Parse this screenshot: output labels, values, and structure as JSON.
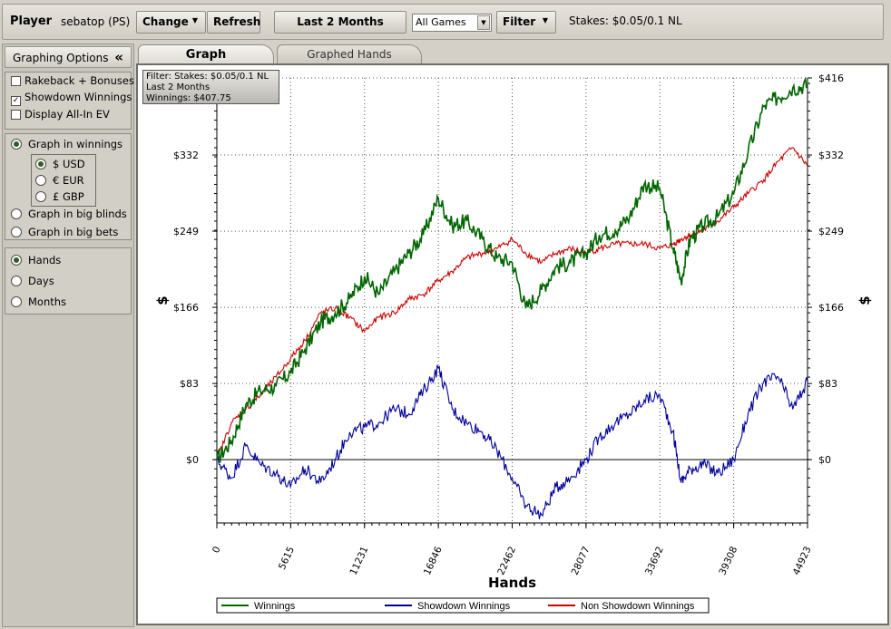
{
  "topbar": {
    "player_label": "Player",
    "player_name": "sebatop (PS)",
    "change_label": "Change",
    "refresh_label": "Refresh",
    "range_label": "Last  2 Months",
    "games_value": "All Games",
    "filter_label": "Filter",
    "stakes_text": "Stakes: $0.05/0.1 NL"
  },
  "sidebar": {
    "header": "Graphing Options",
    "collapse_glyph": "«",
    "checkboxes": [
      {
        "label": "Rakeback + Bonuses",
        "checked": false
      },
      {
        "label": "Showdown Winnings",
        "checked": true
      },
      {
        "label": "Display All-In EV",
        "checked": false
      }
    ],
    "graph_in_winnings": "Graph in winnings",
    "currencies": [
      {
        "label": "$ USD",
        "selected": true
      },
      {
        "label": "€ EUR",
        "selected": false
      },
      {
        "label": "£ GBP",
        "selected": false
      }
    ],
    "graph_in_big_blinds": "Graph in big blinds",
    "graph_in_big_bets": "Graph in big bets",
    "xaxis_options": [
      {
        "label": "Hands",
        "selected": true
      },
      {
        "label": "Days",
        "selected": false
      },
      {
        "label": "Months",
        "selected": false
      }
    ]
  },
  "tabs": [
    {
      "label": "Graph",
      "active": true
    },
    {
      "label": "Graphed Hands",
      "active": false
    }
  ],
  "info_box": {
    "line1": "Filter: Stakes: $0.05/0.1 NL",
    "line2": "Last  2 Months",
    "line3": "Winnings: $407.75"
  },
  "chart_data": {
    "type": "line",
    "xlabel": "Hands",
    "ylabel": "$",
    "xlim": [
      0,
      44923
    ],
    "ylim": [
      -69,
      416
    ],
    "x_ticks": [
      "0",
      "5615",
      "11231",
      "16846",
      "22462",
      "28077",
      "33692",
      "39308",
      "44923"
    ],
    "y_ticks": [
      {
        "value": 416,
        "label": "$416"
      },
      {
        "value": 332,
        "label": "$332"
      },
      {
        "value": 249,
        "label": "$249"
      },
      {
        "value": 166,
        "label": "$166"
      },
      {
        "value": 83,
        "label": "$83"
      },
      {
        "value": 0,
        "label": "$0"
      }
    ],
    "grid": true,
    "legend": "bottom",
    "series": [
      {
        "name": "Winnings",
        "color": "#006600",
        "x": [
          0,
          1100,
          2200,
          3300,
          4500,
          5600,
          6700,
          7900,
          9000,
          10100,
          11231,
          12300,
          13500,
          14600,
          15700,
          16846,
          17900,
          19000,
          20200,
          21300,
          22462,
          23500,
          24700,
          25800,
          26900,
          28077,
          29100,
          30300,
          31400,
          32500,
          33692,
          34700,
          35300,
          36000,
          37000,
          38100,
          39308,
          40400,
          41600,
          42700,
          43800,
          44923
        ],
        "y": [
          0,
          20,
          60,
          75,
          80,
          95,
          120,
          150,
          160,
          175,
          200,
          180,
          205,
          225,
          245,
          285,
          255,
          260,
          240,
          220,
          215,
          165,
          185,
          210,
          215,
          225,
          245,
          250,
          265,
          300,
          295,
          230,
          195,
          240,
          255,
          265,
          290,
          335,
          385,
          395,
          405,
          408
        ]
      },
      {
        "name": "Showdown Winnings",
        "color": "#000099",
        "x": [
          0,
          1100,
          2200,
          3300,
          4500,
          5600,
          6700,
          7900,
          9000,
          10100,
          11231,
          12300,
          13500,
          14600,
          15700,
          16846,
          17900,
          19000,
          20200,
          21300,
          22462,
          23500,
          24700,
          25800,
          26900,
          28077,
          29100,
          30300,
          31400,
          32500,
          33692,
          34700,
          35300,
          36000,
          37000,
          38100,
          39308,
          40400,
          41600,
          42700,
          43800,
          44923
        ],
        "y": [
          0,
          -20,
          15,
          -5,
          -15,
          -30,
          -10,
          -25,
          0,
          30,
          35,
          40,
          55,
          50,
          75,
          100,
          55,
          40,
          30,
          10,
          -20,
          -50,
          -60,
          -30,
          -20,
          0,
          25,
          40,
          50,
          65,
          70,
          30,
          -25,
          -10,
          -5,
          -15,
          0,
          50,
          85,
          90,
          55,
          85
        ]
      },
      {
        "name": "Non Showdown Winnings",
        "color": "#cc0000",
        "x": [
          0,
          1100,
          2200,
          3300,
          4500,
          5600,
          6700,
          7900,
          9000,
          10100,
          11231,
          12300,
          13500,
          14600,
          15700,
          16846,
          17900,
          19000,
          20200,
          21300,
          22462,
          23500,
          24700,
          25800,
          26900,
          28077,
          29100,
          30300,
          31400,
          32500,
          33692,
          34700,
          35300,
          36000,
          37000,
          38100,
          39308,
          40400,
          41600,
          42700,
          43800,
          44923
        ],
        "y": [
          0,
          40,
          55,
          70,
          90,
          110,
          130,
          160,
          165,
          155,
          140,
          155,
          160,
          175,
          180,
          195,
          205,
          220,
          225,
          230,
          240,
          225,
          215,
          225,
          230,
          225,
          230,
          235,
          235,
          235,
          230,
          235,
          240,
          245,
          250,
          260,
          275,
          290,
          305,
          325,
          340,
          320
        ]
      }
    ]
  }
}
